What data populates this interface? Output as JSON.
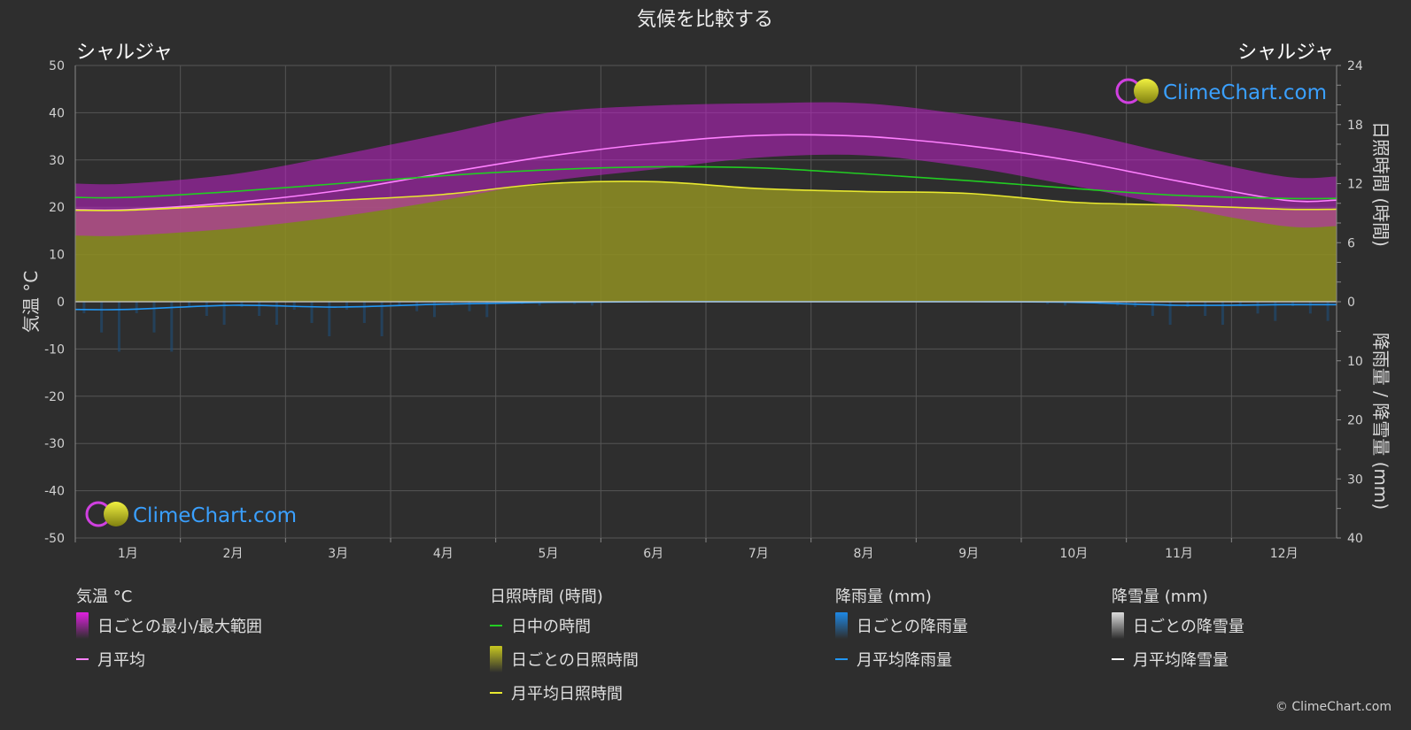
{
  "page": {
    "title": "気候を比較する",
    "location_left": "シャルジャ",
    "location_right": "シャルジャ",
    "watermark": "ClimeChart.com",
    "copyright": "© ClimeChart.com"
  },
  "legend": {
    "temperature": {
      "title": "気温 °C",
      "items": [
        {
          "label": "日ごとの最小/最大範囲",
          "swatch": "box",
          "color": "#e020e0"
        },
        {
          "label": "月平均",
          "swatch": "line",
          "color": "#ff80ff"
        }
      ]
    },
    "sunshine": {
      "title": "日照時間 (時間)",
      "items": [
        {
          "label": "日中の時間",
          "swatch": "line",
          "color": "#22cc22"
        },
        {
          "label": "日ごとの日照時間",
          "swatch": "box",
          "color": "#c8c820"
        },
        {
          "label": "月平均日照時間",
          "swatch": "line",
          "color": "#e8e830"
        }
      ]
    },
    "rain": {
      "title": "降雨量 (mm)",
      "items": [
        {
          "label": "日ごとの降雨量",
          "swatch": "box",
          "color": "#1e88e5"
        },
        {
          "label": "月平均降雨量",
          "swatch": "line",
          "color": "#2196f3"
        }
      ]
    },
    "snow": {
      "title": "降雪量 (mm)",
      "items": [
        {
          "label": "日ごとの降雪量",
          "swatch": "box",
          "color": "#dddddd"
        },
        {
          "label": "月平均降雪量",
          "swatch": "line",
          "color": "#ffffff"
        }
      ]
    }
  },
  "chart_data": {
    "type": "line",
    "title": "気候を比較する",
    "categories": [
      "1月",
      "2月",
      "3月",
      "4月",
      "5月",
      "6月",
      "7月",
      "8月",
      "9月",
      "10月",
      "11月",
      "12月"
    ],
    "y_left": {
      "label": "気温 °C",
      "range": [
        -50,
        50
      ],
      "ticks": [
        50,
        40,
        30,
        20,
        10,
        0,
        -10,
        -20,
        -30,
        -40,
        -50
      ]
    },
    "y_right_top": {
      "label": "日照時間 (時間)",
      "range": [
        0,
        24
      ],
      "ticks": [
        24,
        18,
        12,
        6,
        0
      ]
    },
    "y_right_bottom": {
      "label": "降雨量 / 降雪量 (mm)",
      "range": [
        0,
        40
      ],
      "ticks": [
        10,
        20,
        30,
        40
      ]
    },
    "grid": true,
    "series": [
      {
        "name": "月平均",
        "axis": "temperature",
        "color": "#ff80ff",
        "values": [
          19.5,
          21.0,
          23.5,
          27.2,
          30.8,
          33.5,
          35.2,
          35.0,
          33.0,
          29.8,
          25.5,
          21.5
        ]
      },
      {
        "name": "日中の時間",
        "axis": "sunshine",
        "color": "#22cc22",
        "values": [
          10.6,
          11.2,
          12.0,
          12.8,
          13.4,
          13.7,
          13.6,
          13.0,
          12.3,
          11.5,
          10.8,
          10.5
        ]
      },
      {
        "name": "月平均日照時間",
        "axis": "sunshine",
        "color": "#e8e830",
        "values": [
          9.3,
          9.8,
          10.3,
          10.9,
          12.0,
          12.2,
          11.5,
          11.2,
          11.0,
          10.1,
          9.8,
          9.4
        ]
      },
      {
        "name": "月平均降雨量",
        "axis": "precipitation",
        "color": "#2196f3",
        "values": [
          1.3,
          0.6,
          0.9,
          0.4,
          0.1,
          0.0,
          0.0,
          0.0,
          0.0,
          0.1,
          0.6,
          0.5
        ]
      }
    ],
    "temperature_range": {
      "name": "日ごとの最小/最大範囲",
      "min": [
        14.0,
        15.5,
        18.0,
        21.5,
        25.5,
        28.0,
        30.5,
        31.0,
        28.5,
        24.5,
        20.0,
        16.0
      ],
      "max": [
        25.0,
        27.0,
        31.0,
        35.5,
        40.0,
        41.5,
        42.0,
        42.0,
        39.5,
        36.0,
        31.0,
        26.5
      ]
    }
  }
}
